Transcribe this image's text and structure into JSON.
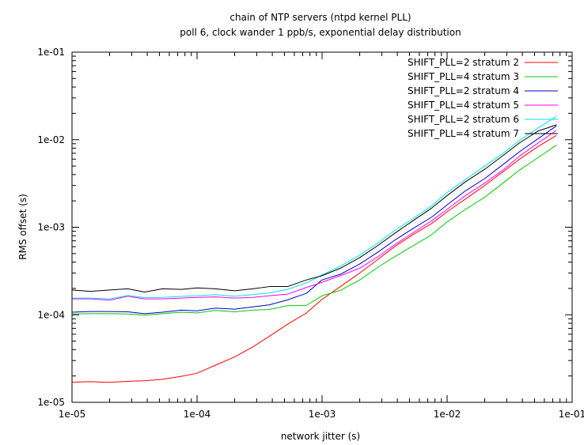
{
  "chart_data": {
    "type": "line",
    "title": "chain of NTP servers (ntpd kernel PLL)",
    "subtitle": "poll 6, clock wander 1 ppb/s, exponential delay distribution",
    "xlabel": "network jitter (s)",
    "ylabel": "RMS offset (s)",
    "xscale": "log",
    "yscale": "log",
    "xlim": [
      1e-05,
      0.1
    ],
    "ylim": [
      1e-05,
      0.1
    ],
    "xticks": [
      1e-05,
      0.0001,
      0.001,
      0.01,
      0.1
    ],
    "xtick_labels": [
      "1e-05",
      "1e-04",
      "1e-03",
      "1e-02",
      "1e-01"
    ],
    "yticks": [
      1e-05,
      0.0001,
      0.001,
      0.01,
      0.1
    ],
    "ytick_labels": [
      "1e-05",
      "1e-04",
      "1e-03",
      "1e-02",
      "1e-01"
    ],
    "grid": false,
    "legend_position": "top-right",
    "x": [
      1e-05,
      1.4e-05,
      2e-05,
      2.8e-05,
      3.8e-05,
      5.3e-05,
      7.5e-05,
      0.0001,
      0.00014,
      0.0002,
      0.00028,
      0.00038,
      0.00053,
      0.00075,
      0.001,
      0.0014,
      0.002,
      0.0028,
      0.0038,
      0.0053,
      0.0075,
      0.01,
      0.014,
      0.02,
      0.028,
      0.038,
      0.053,
      0.075
    ],
    "series": [
      {
        "name": "SHIFT_PLL=2 stratum 2",
        "color": "#ff0000",
        "values": [
          1.7e-05,
          1.72e-05,
          1.69e-05,
          1.74e-05,
          1.76e-05,
          1.83e-05,
          1.98e-05,
          2.15e-05,
          2.65e-05,
          3.3e-05,
          4.3e-05,
          5.7e-05,
          7.8e-05,
          0.000105,
          0.00015,
          0.00021,
          0.0003,
          0.00043,
          0.0006,
          0.00082,
          0.0011,
          0.0015,
          0.0021,
          0.003,
          0.0043,
          0.006,
          0.0083,
          0.0112
        ]
      },
      {
        "name": "SHIFT_PLL=4 stratum 3",
        "color": "#00cc00",
        "values": [
          0.000102,
          0.000103,
          0.000103,
          0.000102,
          9.9e-05,
          0.000103,
          0.000107,
          0.000105,
          0.000112,
          0.000108,
          0.000113,
          0.000115,
          0.000127,
          0.000128,
          0.000165,
          0.00019,
          0.00025,
          0.00035,
          0.00046,
          0.00061,
          0.00082,
          0.00115,
          0.0016,
          0.0022,
          0.0032,
          0.0045,
          0.0062,
          0.0087
        ]
      },
      {
        "name": "SHIFT_PLL=2 stratum 4",
        "color": "#0000cc",
        "values": [
          0.000107,
          0.000109,
          0.000109,
          0.000108,
          0.000103,
          0.000107,
          0.000113,
          0.000111,
          0.000119,
          0.000116,
          0.000123,
          0.00013,
          0.000148,
          0.000176,
          0.00025,
          0.00029,
          0.00038,
          0.00052,
          0.00071,
          0.00096,
          0.0013,
          0.0018,
          0.0026,
          0.0036,
          0.0052,
          0.0073,
          0.0102,
          0.0144
        ]
      },
      {
        "name": "SHIFT_PLL=4 stratum 5",
        "color": "#ff00ff",
        "values": [
          0.000152,
          0.000152,
          0.000147,
          0.000163,
          0.000152,
          0.000152,
          0.000155,
          0.000158,
          0.00016,
          0.000155,
          0.000158,
          0.000165,
          0.000172,
          0.000205,
          0.000235,
          0.00028,
          0.00034,
          0.00046,
          0.00063,
          0.00086,
          0.00118,
          0.0016,
          0.0023,
          0.0032,
          0.0045,
          0.0065,
          0.0091,
          0.0128
        ]
      },
      {
        "name": "SHIFT_PLL=2 stratum 6",
        "color": "#00e5e5",
        "values": [
          0.000155,
          0.000155,
          0.000152,
          0.000166,
          0.000157,
          0.000158,
          0.000162,
          0.000165,
          0.00017,
          0.000163,
          0.00017,
          0.000178,
          0.000195,
          0.000232,
          0.000285,
          0.00036,
          0.00048,
          0.00066,
          0.00092,
          0.00125,
          0.00175,
          0.0025,
          0.0035,
          0.005,
          0.007,
          0.0098,
          0.0135,
          0.0185
        ]
      },
      {
        "name": "SHIFT_PLL=4 stratum 7",
        "color": "#000000",
        "values": [
          0.000192,
          0.000185,
          0.000192,
          0.000198,
          0.000182,
          0.000198,
          0.000195,
          0.000203,
          0.000198,
          0.000188,
          0.000198,
          0.00021,
          0.00021,
          0.00025,
          0.00028,
          0.00034,
          0.00045,
          0.00062,
          0.00085,
          0.00118,
          0.00165,
          0.0023,
          0.0033,
          0.0046,
          0.0066,
          0.0092,
          0.0125,
          0.0148
        ]
      }
    ]
  }
}
